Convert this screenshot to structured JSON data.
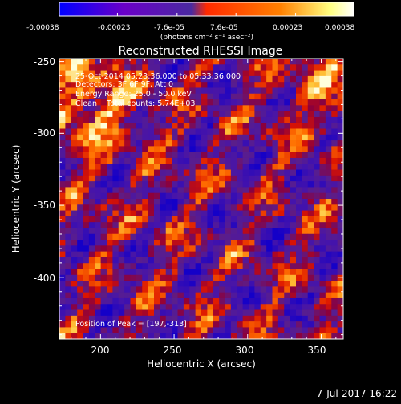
{
  "colorbar": {
    "min_label": "-0.00038",
    "tick_labels": [
      "-0.00038",
      "-0.00023",
      "-7.6e-05",
      "7.6e-05",
      "0.00023",
      "0.00038"
    ],
    "tick_values": [
      -0.00038,
      -0.00023,
      -7.6e-05,
      7.6e-05,
      0.00023,
      0.00038
    ],
    "range": [
      -0.00038,
      0.00038
    ],
    "unit_label": "(photons cm⁻² s⁻¹ asec⁻²)",
    "colors": [
      "#0000ff",
      "#6a00c8",
      "#4a2aa0",
      "#ff2a00",
      "#ff8000",
      "#ffff80",
      "#ffffff"
    ]
  },
  "chart_data": {
    "type": "heatmap",
    "title": "Reconstructed RHESSI Image",
    "xlabel": "Heliocentric X (arcsec)",
    "ylabel": "Heliocentric Y (arcsec)",
    "xlim": [
      172,
      365
    ],
    "ylim": [
      -443,
      -248
    ],
    "x_ticks": [
      200,
      250,
      300,
      350
    ],
    "y_ticks": [
      -250,
      -300,
      -350,
      -400
    ],
    "x_tick_labels": [
      "200",
      "250",
      "300",
      "350"
    ],
    "y_tick_labels": [
      "-250",
      "-300",
      "-350",
      "-400"
    ],
    "annotations": [
      "25-Oct-2014 05:23:36.000 to 05:33:36.000",
      "Detectors: 3F 6F 9F, Att 0",
      "Energy Range: 25.0 - 50.0 keV",
      "Clean    Total counts: 5.74E+03"
    ],
    "peak_label": "Position of Peak = [197,-313]",
    "peak_position": [
      197,
      -313
    ],
    "grid": false
  },
  "footer": {
    "date": "7-Jul-2017 16:22"
  }
}
